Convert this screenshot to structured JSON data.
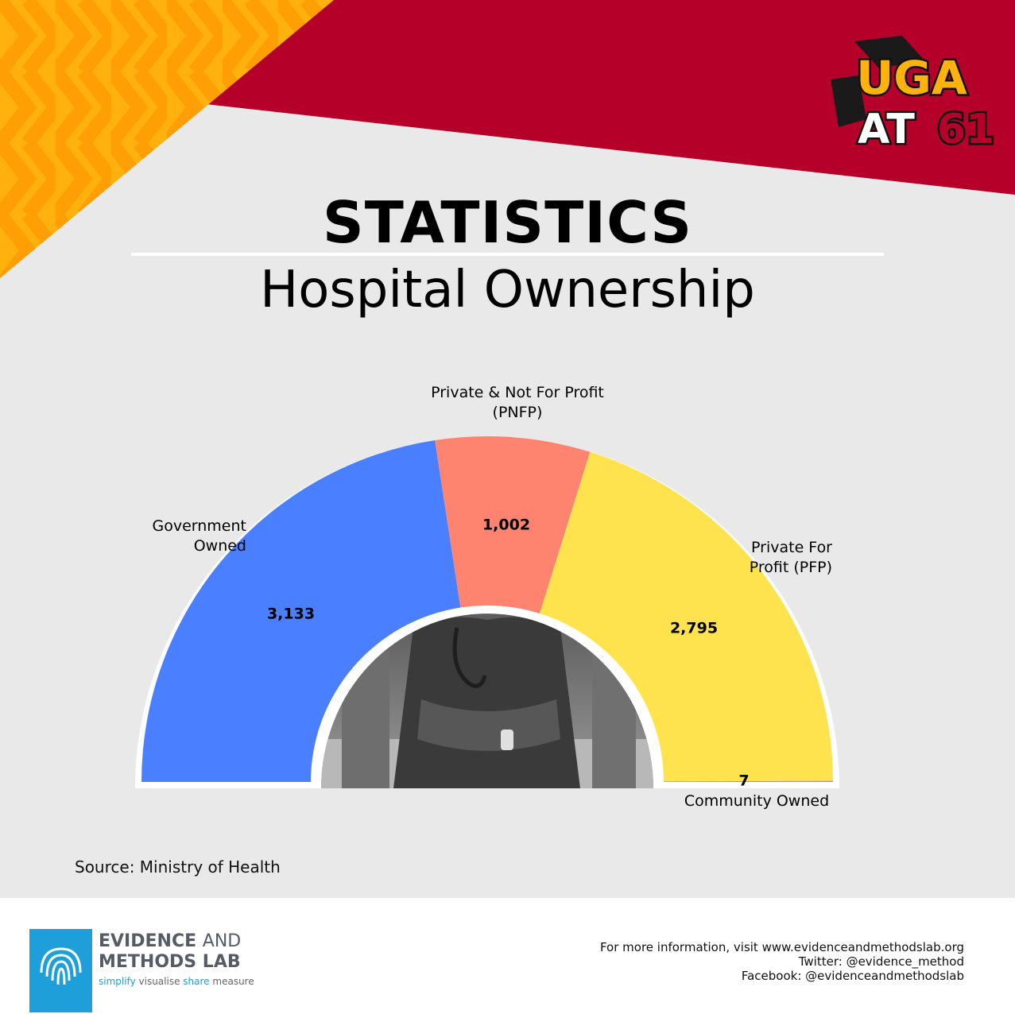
{
  "header": {
    "badge_line1": "UGA",
    "badge_line2": "AT",
    "badge_number": "61"
  },
  "title": "STATISTICS",
  "subtitle": "Hospital Ownership",
  "chart_data": {
    "type": "pie",
    "shape": "semicircle-donut",
    "categories": [
      "Government Owned",
      "Private & Not For Profit (PNFP)",
      "Private For Profit (PFP)",
      "Community Owned"
    ],
    "values": [
      3133,
      1002,
      2795,
      7
    ],
    "value_labels": [
      "3,133",
      "1,002",
      "2,795",
      "7"
    ],
    "label_lines": [
      [
        "Government",
        "Owned"
      ],
      [
        "Private & Not For Profit",
        "(PNFP)"
      ],
      [
        "Private For",
        "Profit (PFP)"
      ],
      [
        "Community Owned"
      ]
    ],
    "colors": [
      "#4a80ff",
      "#ff8470",
      "#ffe34e",
      "#c47ad6"
    ]
  },
  "source": "Source: Ministry of Health",
  "footer": {
    "org_line1_bold": "EVIDENCE",
    "org_line1_light": "AND",
    "org_line2": "METHODS LAB",
    "tagline": [
      "simplify",
      "visualise",
      "share",
      "measure"
    ],
    "contact_lines": [
      "For more information, visit www.evidenceandmethodslab.org",
      "Twitter: @evidence_method",
      "Facebook: @evidenceandmethodslab"
    ]
  }
}
